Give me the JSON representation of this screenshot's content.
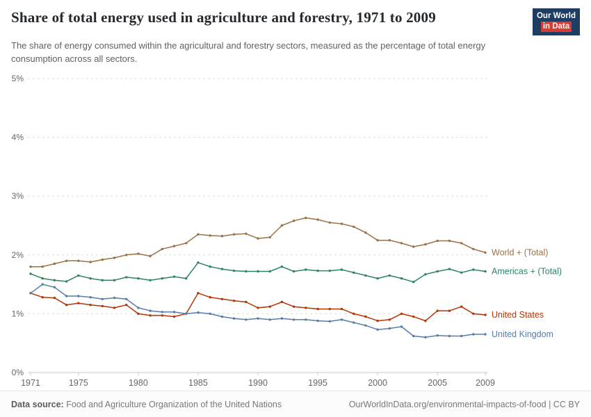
{
  "header": {
    "title": "Share of total energy used in agriculture and forestry, 1971 to 2009",
    "subtitle": "The share of energy consumed within the agricultural and forestry sectors, measured as the percentage of total energy consumption across all sectors.",
    "logo": {
      "line1": "Our World",
      "line2": "in Data"
    }
  },
  "footer": {
    "source_label": "Data source:",
    "source_text": " Food and Agriculture Organization of the United Nations",
    "link_text": "OurWorldInData.org/environmental-impacts-of-food | CC BY"
  },
  "colors": {
    "grid": "#dcdcdc",
    "baseline": "#c9c9c9",
    "tick_text": "#666666"
  },
  "chart_data": {
    "type": "line",
    "title": "Share of total energy used in agriculture and forestry, 1971 to 2009",
    "xlabel": "",
    "ylabel": "",
    "ylim": [
      0,
      5
    ],
    "y_ticks": [
      0,
      1,
      2,
      3,
      4,
      5
    ],
    "y_tick_suffix": "%",
    "x_ticks": [
      1971,
      1975,
      1980,
      1985,
      1990,
      1995,
      2000,
      2005,
      2009
    ],
    "grid": "horizontal-dashed",
    "legend_position": "right-end-labels",
    "x": [
      1971,
      1972,
      1973,
      1974,
      1975,
      1976,
      1977,
      1978,
      1979,
      1980,
      1981,
      1982,
      1983,
      1984,
      1985,
      1986,
      1987,
      1988,
      1989,
      1990,
      1991,
      1992,
      1993,
      1994,
      1995,
      1996,
      1997,
      1998,
      1999,
      2000,
      2001,
      2002,
      2003,
      2004,
      2005,
      2006,
      2007,
      2008,
      2009
    ],
    "series": [
      {
        "name": "World + (Total)",
        "color": "#9A7145",
        "values": [
          1.8,
          1.8,
          1.85,
          1.9,
          1.9,
          1.88,
          1.92,
          1.95,
          2.0,
          2.02,
          1.98,
          2.1,
          2.15,
          2.2,
          2.35,
          2.33,
          2.32,
          2.35,
          2.36,
          2.28,
          2.3,
          2.5,
          2.58,
          2.63,
          2.6,
          2.55,
          2.53,
          2.48,
          2.38,
          2.25,
          2.25,
          2.2,
          2.14,
          2.18,
          2.24,
          2.24,
          2.2,
          2.1,
          2.04
        ]
      },
      {
        "name": "Americas + (Total)",
        "color": "#2C8465",
        "values": [
          1.68,
          1.6,
          1.57,
          1.55,
          1.65,
          1.6,
          1.57,
          1.57,
          1.62,
          1.6,
          1.57,
          1.6,
          1.63,
          1.6,
          1.87,
          1.8,
          1.76,
          1.73,
          1.72,
          1.72,
          1.72,
          1.8,
          1.72,
          1.75,
          1.73,
          1.73,
          1.75,
          1.7,
          1.65,
          1.6,
          1.65,
          1.6,
          1.54,
          1.67,
          1.72,
          1.76,
          1.7,
          1.75,
          1.72
        ]
      },
      {
        "name": "United States",
        "color": "#B13507",
        "values": [
          1.35,
          1.28,
          1.27,
          1.15,
          1.18,
          1.15,
          1.13,
          1.1,
          1.15,
          1.0,
          0.97,
          0.97,
          0.95,
          1.0,
          1.35,
          1.28,
          1.25,
          1.22,
          1.2,
          1.1,
          1.12,
          1.2,
          1.12,
          1.1,
          1.08,
          1.08,
          1.08,
          1.0,
          0.95,
          0.88,
          0.9,
          1.0,
          0.95,
          0.88,
          1.05,
          1.05,
          1.12,
          1.0,
          0.98
        ]
      },
      {
        "name": "United Kingdom",
        "color": "#577CA9",
        "values": [
          1.35,
          1.5,
          1.45,
          1.3,
          1.3,
          1.28,
          1.25,
          1.27,
          1.25,
          1.1,
          1.05,
          1.03,
          1.03,
          1.0,
          1.02,
          1.0,
          0.95,
          0.92,
          0.9,
          0.92,
          0.9,
          0.92,
          0.9,
          0.9,
          0.88,
          0.87,
          0.9,
          0.85,
          0.8,
          0.73,
          0.75,
          0.78,
          0.62,
          0.6,
          0.63,
          0.62,
          0.62,
          0.65,
          0.65
        ]
      }
    ]
  }
}
